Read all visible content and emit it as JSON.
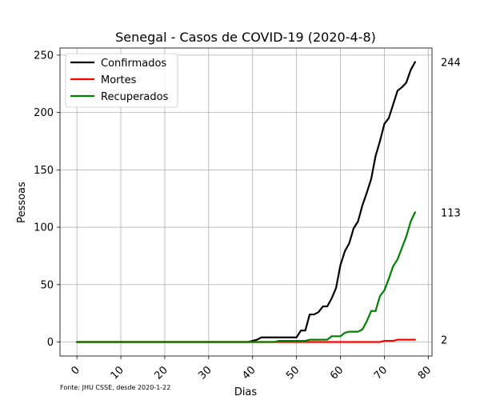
{
  "chart_data": {
    "type": "line",
    "title": "Senegal - Casos de COVID-19 (2020-4-8)",
    "xlabel": "Dias",
    "ylabel": "Pessoas",
    "xlim": [
      -3.85,
      80.85
    ],
    "ylim": [
      -12.2,
      256.2
    ],
    "xticks": [
      0,
      10,
      20,
      30,
      40,
      50,
      60,
      70,
      80
    ],
    "yticks": [
      0,
      50,
      100,
      150,
      200,
      250
    ],
    "grid": true,
    "legend_position": "top-left",
    "source_note": "Fonte: JHU CSSE, desde 2020-1-22",
    "series": [
      {
        "name": "Confirmados",
        "color": "#000000",
        "end_label": "244",
        "x": [
          0,
          39,
          40,
          41,
          42,
          43,
          44,
          45,
          46,
          47,
          48,
          49,
          50,
          51,
          52,
          53,
          54,
          55,
          56,
          57,
          58,
          59,
          60,
          61,
          62,
          63,
          64,
          65,
          66,
          67,
          68,
          69,
          70,
          71,
          72,
          73,
          74,
          75,
          76,
          77
        ],
        "y": [
          0,
          0,
          1,
          2,
          4,
          4,
          4,
          4,
          4,
          4,
          4,
          4,
          4,
          10,
          10,
          24,
          24,
          26,
          31,
          31,
          38,
          47,
          67,
          79,
          86,
          99,
          105,
          119,
          130,
          142,
          162,
          175,
          190,
          195,
          207,
          219,
          222,
          226,
          237,
          244
        ]
      },
      {
        "name": "Mortes",
        "color": "#ff0000",
        "end_label": "2",
        "x": [
          0,
          69,
          70,
          71,
          72,
          73,
          74,
          75,
          76,
          77
        ],
        "y": [
          0,
          0,
          1,
          1,
          1,
          2,
          2,
          2,
          2,
          2
        ]
      },
      {
        "name": "Recuperados",
        "color": "#008000",
        "end_label": "113",
        "x": [
          0,
          45,
          46,
          47,
          48,
          49,
          50,
          51,
          52,
          53,
          54,
          55,
          56,
          57,
          58,
          59,
          60,
          61,
          62,
          63,
          64,
          65,
          66,
          67,
          68,
          69,
          70,
          71,
          72,
          73,
          74,
          75,
          76,
          77
        ],
        "y": [
          0,
          0,
          1,
          1,
          1,
          1,
          1,
          1,
          1,
          2,
          2,
          2,
          2,
          2,
          5,
          5,
          5,
          8,
          9,
          9,
          9,
          11,
          18,
          27,
          27,
          40,
          45,
          55,
          66,
          72,
          82,
          92,
          105,
          113
        ]
      }
    ]
  }
}
